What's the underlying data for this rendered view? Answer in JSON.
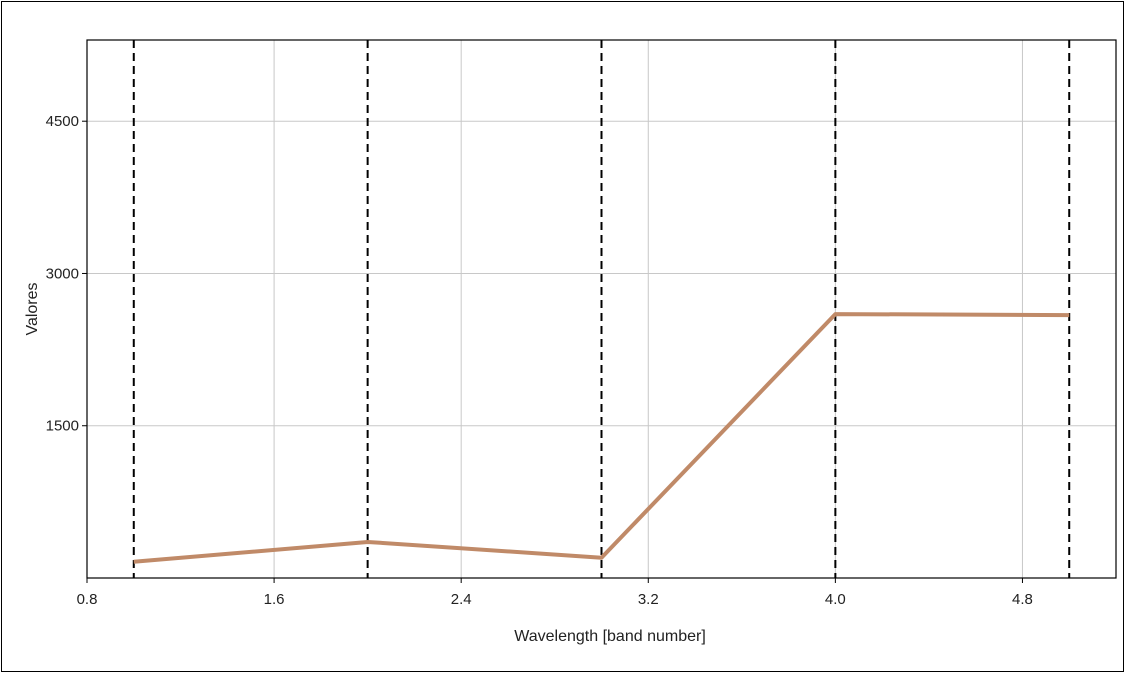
{
  "chart_data": {
    "type": "line",
    "title": "",
    "xlabel": "Wavelength [band number]",
    "ylabel": "Valores",
    "xlim": [
      0.8,
      5.2
    ],
    "ylim": [
      0,
      5300
    ],
    "xticks": [
      "0.8",
      "1.6",
      "2.4",
      "3.2",
      "4.0",
      "4.8"
    ],
    "yticks": [
      "1500",
      "3000",
      "4500"
    ],
    "grid": true,
    "legend": "none",
    "band_markers": [
      1,
      2,
      3,
      4,
      5
    ],
    "series": [
      {
        "color": "#c08a68",
        "x": [
          1,
          2,
          3,
          4,
          5
        ],
        "y": [
          160,
          355,
          200,
          2600,
          2590
        ]
      }
    ]
  }
}
